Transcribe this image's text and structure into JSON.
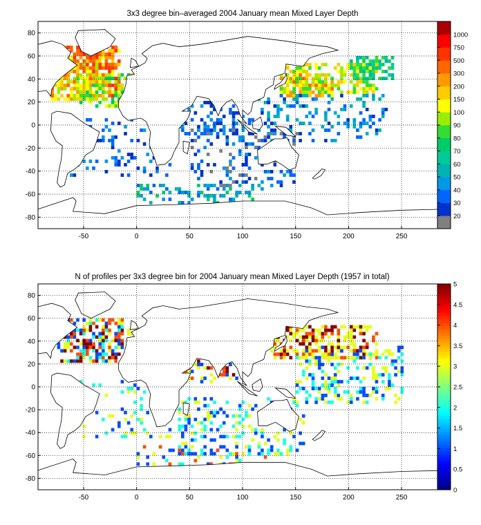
{
  "chart_data": [
    {
      "type": "heatmap",
      "title": "3x3 degree bin–averaged 2004 January mean Mixed Layer Depth",
      "xlabel": "",
      "ylabel": "",
      "xlim": [
        -93,
        293
      ],
      "ylim": [
        -90,
        90
      ],
      "xticks": [
        -50,
        0,
        50,
        100,
        150,
        200,
        250
      ],
      "yticks": [
        -80,
        -60,
        -40,
        -20,
        0,
        20,
        40,
        60,
        80
      ],
      "grid": true,
      "bin_size_deg": 3,
      "colorbar": {
        "scale": "categorical",
        "levels": [
          "20",
          "30",
          "40",
          "50",
          "60",
          "70",
          "80",
          "90",
          "100",
          "150",
          "200",
          "300",
          "500",
          "750",
          "1000"
        ],
        "colors": [
          "#808080",
          "#0033cc",
          "#0066ff",
          "#0099e6",
          "#00b3b3",
          "#00cc99",
          "#00cc66",
          "#33dd33",
          "#99ee00",
          "#ffff00",
          "#ffcc00",
          "#ff9900",
          "#ff6600",
          "#ff3300",
          "#ff0000",
          "#aa0000"
        ]
      },
      "clusters": [
        {
          "x": -58,
          "y": 40,
          "w": 22,
          "h": 18,
          "levels": [
            8,
            9,
            10,
            11,
            12
          ],
          "density": 0.75
        },
        {
          "x": -33,
          "y": 45,
          "w": 15,
          "h": 22,
          "levels": [
            9,
            10,
            11,
            12,
            13
          ],
          "density": 0.7
        },
        {
          "x": -30,
          "y": 30,
          "w": 26,
          "h": 14,
          "levels": [
            6,
            7,
            8,
            9,
            10
          ],
          "density": 0.45
        },
        {
          "x": -55,
          "y": 60,
          "w": 14,
          "h": 6,
          "levels": [
            11,
            12,
            13
          ],
          "density": 0.6
        },
        {
          "x": 160,
          "y": 35,
          "w": 25,
          "h": 10,
          "levels": [
            9,
            10,
            11,
            12
          ],
          "density": 0.6
        },
        {
          "x": 180,
          "y": 40,
          "w": 45,
          "h": 12,
          "levels": [
            7,
            8,
            9,
            10
          ],
          "density": 0.5
        },
        {
          "x": 220,
          "y": 48,
          "w": 20,
          "h": 10,
          "levels": [
            4,
            5,
            6,
            7
          ],
          "density": 0.6
        },
        {
          "x": 75,
          "y": 5,
          "w": 35,
          "h": 15,
          "levels": [
            1,
            2,
            3
          ],
          "density": 0.35
        },
        {
          "x": 175,
          "y": 5,
          "w": 60,
          "h": 20,
          "levels": [
            1,
            2,
            3,
            4
          ],
          "density": 0.25
        },
        {
          "x": 100,
          "y": -30,
          "w": 50,
          "h": 25,
          "levels": [
            0,
            1,
            2,
            3
          ],
          "density": 0.22
        },
        {
          "x": -20,
          "y": -20,
          "w": 50,
          "h": 25,
          "levels": [
            1,
            2,
            3
          ],
          "density": 0.15
        },
        {
          "x": 60,
          "y": -60,
          "w": 60,
          "h": 8,
          "levels": [
            2,
            3,
            4,
            6
          ],
          "density": 0.25
        }
      ]
    },
    {
      "type": "heatmap",
      "title": "N of profiles per 3x3 degree bin for 2004 January mean Mixed Layer Depth  (1957 in total)",
      "xlabel": "",
      "ylabel": "",
      "xlim": [
        -93,
        293
      ],
      "ylim": [
        -90,
        90
      ],
      "xticks": [
        -50,
        0,
        50,
        100,
        150,
        200,
        250
      ],
      "yticks": [
        -80,
        -60,
        -40,
        -20,
        0,
        20,
        40,
        60,
        80
      ],
      "grid": true,
      "bin_size_deg": 3,
      "total_profiles": 1957,
      "colorbar": {
        "scale": "continuous",
        "min": 0,
        "max": 5,
        "ticks": [
          0,
          0.5,
          1,
          1.5,
          2,
          2.5,
          3,
          3.5,
          4,
          4.5,
          5
        ],
        "colormap": "jet"
      },
      "clusters": [
        {
          "x": -45,
          "y": 40,
          "w": 30,
          "h": 18,
          "values": [
            1,
            2,
            3,
            4,
            5
          ],
          "density": 0.6
        },
        {
          "x": 10,
          "y": 40,
          "w": 20,
          "h": 8,
          "values": [
            3,
            4,
            5
          ],
          "density": 0.4
        },
        {
          "x": 70,
          "y": 15,
          "w": 25,
          "h": 12,
          "values": [
            1,
            3,
            4,
            5
          ],
          "density": 0.35
        },
        {
          "x": 175,
          "y": 38,
          "w": 50,
          "h": 14,
          "values": [
            3,
            3,
            4,
            5
          ],
          "density": 0.5
        },
        {
          "x": 200,
          "y": 10,
          "w": 50,
          "h": 25,
          "values": [
            1,
            2,
            3
          ],
          "density": 0.3
        },
        {
          "x": 100,
          "y": -35,
          "w": 60,
          "h": 25,
          "values": [
            1,
            2,
            3
          ],
          "density": 0.25
        },
        {
          "x": -20,
          "y": -20,
          "w": 50,
          "h": 25,
          "values": [
            1,
            2,
            3
          ],
          "density": 0.15
        },
        {
          "x": 60,
          "y": -60,
          "w": 60,
          "h": 8,
          "values": [
            1,
            2,
            3,
            4
          ],
          "density": 0.2
        }
      ]
    }
  ]
}
